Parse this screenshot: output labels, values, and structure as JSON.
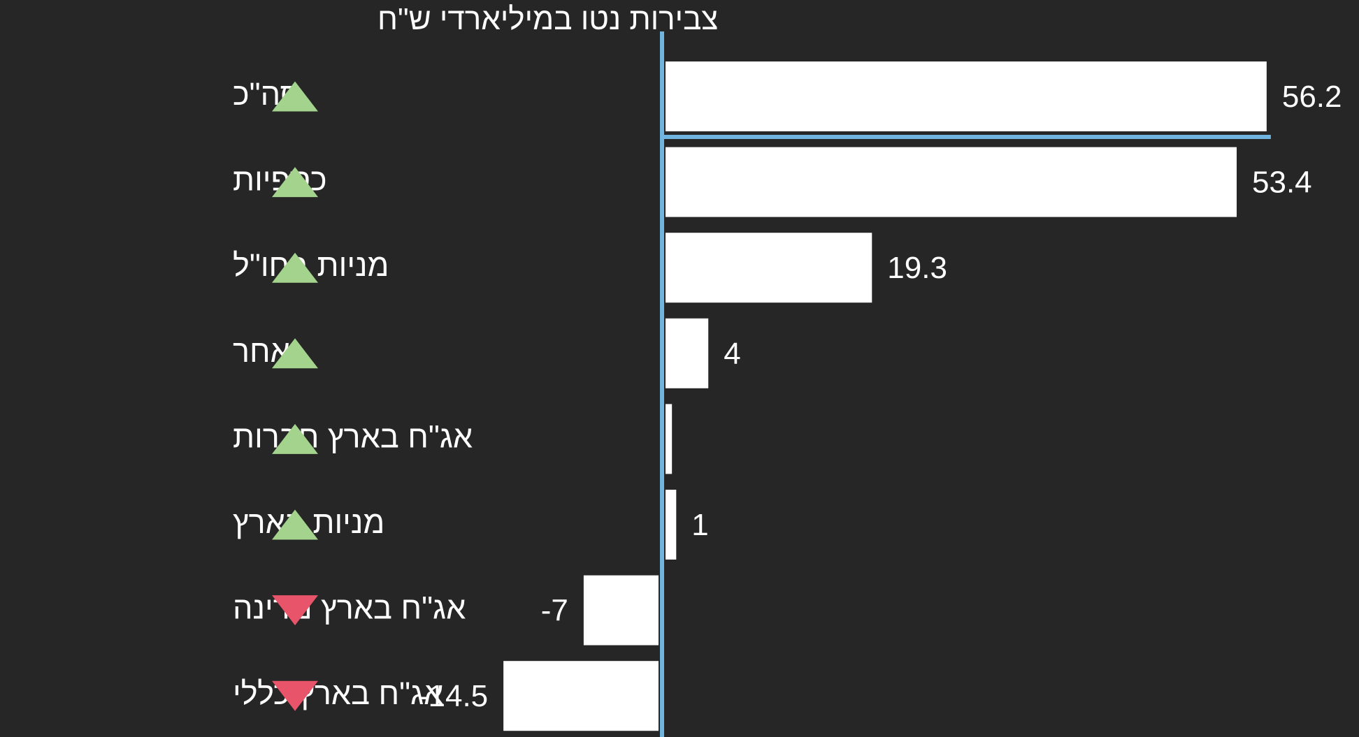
{
  "chart_data": {
    "type": "bar",
    "orientation": "horizontal",
    "title": "צבירות נטו במיליארדי ש\"ח",
    "categories": [
      "סה\"כ",
      "כספיות",
      "מניות בחו\"ל",
      "אחר",
      "אג\"ח בארץ חברות",
      "מניות בארץ",
      "אג\"ח בארץ מדינה",
      "אג\"ח בארץ כללי"
    ],
    "values": [
      56.2,
      53.4,
      19.3,
      4,
      0.6,
      1,
      -7,
      -14.5
    ],
    "value_labels": [
      "56.2",
      "53.4",
      "19.3",
      "4",
      "",
      "1",
      "-7",
      "-14.5"
    ],
    "directions": [
      "up",
      "up",
      "up",
      "up",
      "up",
      "up",
      "down",
      "down"
    ],
    "xlim": [
      -14.5,
      56.2
    ],
    "grid": false,
    "legend": "none"
  },
  "colors": {
    "background": "#262626",
    "bar": "#ffffff",
    "text": "#ffffff",
    "axis": "#6fb5e0",
    "up": "#a3d38c",
    "down": "#e8546a"
  },
  "icons": {
    "up": "triangle-up-icon",
    "down": "triangle-down-icon"
  }
}
